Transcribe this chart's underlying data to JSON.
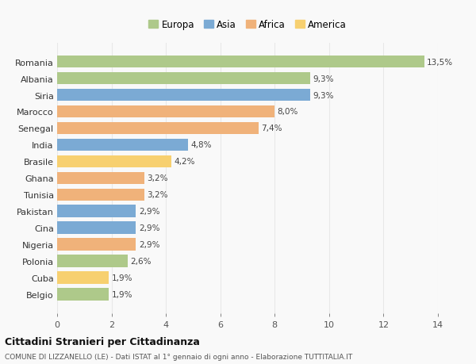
{
  "countries": [
    "Romania",
    "Albania",
    "Siria",
    "Marocco",
    "Senegal",
    "India",
    "Brasile",
    "Ghana",
    "Tunisia",
    "Pakistan",
    "Cina",
    "Nigeria",
    "Polonia",
    "Cuba",
    "Belgio"
  ],
  "values": [
    13.5,
    9.3,
    9.3,
    8.0,
    7.4,
    4.8,
    4.2,
    3.2,
    3.2,
    2.9,
    2.9,
    2.9,
    2.6,
    1.9,
    1.9
  ],
  "labels": [
    "13,5%",
    "9,3%",
    "9,3%",
    "8,0%",
    "7,4%",
    "4,8%",
    "4,2%",
    "3,2%",
    "3,2%",
    "2,9%",
    "2,9%",
    "2,9%",
    "2,6%",
    "1,9%",
    "1,9%"
  ],
  "continents": [
    "Europa",
    "Europa",
    "Asia",
    "Africa",
    "Africa",
    "Asia",
    "America",
    "Africa",
    "Africa",
    "Asia",
    "Asia",
    "Africa",
    "Europa",
    "America",
    "Europa"
  ],
  "colors": {
    "Europa": "#aec98a",
    "Asia": "#7baad4",
    "Africa": "#f0b27a",
    "America": "#f7d070"
  },
  "legend_order": [
    "Europa",
    "Asia",
    "Africa",
    "America"
  ],
  "title": "Cittadini Stranieri per Cittadinanza",
  "subtitle": "COMUNE DI LIZZANELLO (LE) - Dati ISTAT al 1° gennaio di ogni anno - Elaborazione TUTTITALIA.IT",
  "xlim": [
    0,
    14
  ],
  "xticks": [
    0,
    2,
    4,
    6,
    8,
    10,
    12,
    14
  ],
  "background_color": "#f9f9f9",
  "grid_color": "#e8e8e8",
  "bar_height": 0.75
}
